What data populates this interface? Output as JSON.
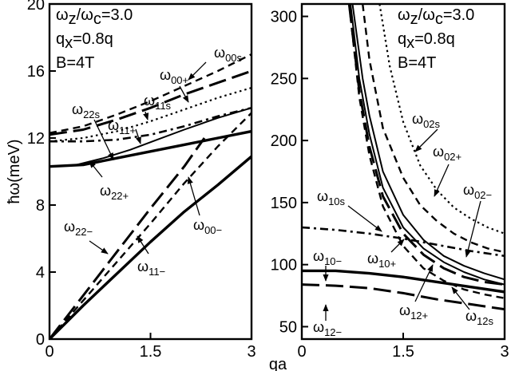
{
  "chart_data": [
    {
      "type": "line",
      "panel": "left",
      "ylabel": "ħω(meV)",
      "xlim": [
        0,
        3
      ],
      "ylim": [
        0,
        20
      ],
      "xticks": [
        "0",
        "1.5",
        "3"
      ],
      "yticks": [
        "0",
        "4",
        "8",
        "12",
        "16",
        "20"
      ],
      "annotations": [
        "ωz/ωc=3.0",
        "qx=0.8q",
        "B=4T"
      ],
      "series": [
        {
          "name": "ω00s",
          "style": "dash",
          "x": [
            0,
            0.5,
            1.0,
            1.5,
            2.0,
            2.5,
            3.0
          ],
          "y": [
            12.3,
            12.7,
            13.4,
            14.2,
            15.1,
            16.0,
            17.0
          ]
        },
        {
          "name": "ω00+",
          "style": "longdash",
          "x": [
            0,
            0.5,
            1.0,
            1.5,
            2.0,
            2.5,
            3.0
          ],
          "y": [
            12.2,
            12.5,
            13.1,
            13.8,
            14.6,
            15.3,
            16.0
          ]
        },
        {
          "name": "ω11s",
          "style": "dot",
          "x": [
            0,
            0.5,
            1.0,
            1.5,
            2.0,
            2.5,
            3.0
          ],
          "y": [
            11.8,
            12.0,
            12.4,
            13.0,
            13.7,
            14.4,
            15.0
          ]
        },
        {
          "name": "ω11+",
          "style": "dashdot",
          "x": [
            0,
            0.5,
            1.0,
            1.5,
            2.0,
            2.5,
            3.0
          ],
          "y": [
            11.8,
            11.8,
            11.9,
            12.2,
            12.7,
            13.3,
            13.8
          ]
        },
        {
          "name": "ω22s",
          "style": "solid",
          "x": [
            0,
            0.4,
            0.8,
            1.2,
            1.6,
            2.0,
            2.5,
            3.0
          ],
          "y": [
            10.3,
            10.4,
            10.8,
            11.3,
            11.9,
            12.5,
            13.2,
            13.8
          ]
        },
        {
          "name": "ω22+",
          "style": "solid-thick",
          "x": [
            0,
            0.5,
            1.0,
            1.5,
            2.0,
            2.5,
            3.0
          ],
          "y": [
            10.3,
            10.4,
            10.8,
            11.2,
            11.6,
            12.0,
            12.4
          ]
        },
        {
          "name": "ω22−",
          "style": "longdash",
          "x": [
            0,
            0.5,
            1.0,
            1.5,
            2.0,
            2.3
          ],
          "y": [
            0,
            2.6,
            5.2,
            7.8,
            10.3,
            12.0
          ]
        },
        {
          "name": "ω00−",
          "style": "dash",
          "x": [
            0,
            0.5,
            1.0,
            1.5,
            2.0,
            2.5,
            3.0
          ],
          "y": [
            0,
            2.3,
            4.6,
            6.9,
            9.3,
            11.5,
            13.5
          ]
        },
        {
          "name": "ω11−",
          "style": "solid-thick",
          "x": [
            0,
            0.5,
            1.0,
            1.5,
            2.0,
            2.5,
            3.0
          ],
          "y": [
            0,
            2.0,
            3.9,
            5.8,
            7.6,
            9.2,
            10.9
          ]
        }
      ]
    },
    {
      "type": "line",
      "panel": "right",
      "xlabel": "qa",
      "xlim": [
        0,
        3
      ],
      "ylim": [
        40,
        310
      ],
      "xticks": [
        "0",
        "1.5",
        "3"
      ],
      "yticks": [
        "50",
        "100",
        "150",
        "200",
        "250",
        "300"
      ],
      "annotations": [
        "ωz/ωc=3.0",
        "qx=0.8q",
        "B=4T"
      ],
      "series": [
        {
          "name": "ω02s",
          "style": "dot",
          "x": [
            1.15,
            1.3,
            1.5,
            1.75,
            2.0,
            2.25,
            2.5,
            2.75,
            3.0
          ],
          "y": [
            310,
            260,
            215,
            180,
            160,
            146,
            137,
            130,
            125
          ]
        },
        {
          "name": "ω02+",
          "style": "dash",
          "x": [
            0.9,
            1.0,
            1.2,
            1.5,
            1.75,
            2.0,
            2.25,
            2.5,
            2.75,
            3.0
          ],
          "y": [
            310,
            265,
            210,
            170,
            148,
            135,
            125,
            118,
            113,
            110
          ]
        },
        {
          "name": "ω02−",
          "style": "dashdot",
          "x": [
            0,
            0.5,
            1.0,
            1.5,
            2.0,
            2.5,
            3.0
          ],
          "y": [
            130,
            128,
            125,
            121,
            116,
            111,
            107
          ]
        },
        {
          "name": "ω10s",
          "style": "solid",
          "x": [
            0.75,
            0.9,
            1.0,
            1.2,
            1.5,
            1.8,
            2.1,
            2.4,
            2.7,
            3.0
          ],
          "y": [
            310,
            250,
            220,
            175,
            140,
            120,
            107,
            99,
            93,
            88
          ]
        },
        {
          "name": "ω10+",
          "style": "solid",
          "x": [
            0.72,
            0.85,
            1.0,
            1.2,
            1.5,
            1.8,
            2.1,
            2.4,
            2.7,
            3.0
          ],
          "y": [
            310,
            250,
            205,
            162,
            130,
            113,
            102,
            94,
            88,
            84
          ]
        },
        {
          "name": "ω12+",
          "style": "longdash",
          "x": [
            0.7,
            0.85,
            1.0,
            1.2,
            1.5,
            1.8,
            2.1,
            2.4,
            2.7,
            3.0
          ],
          "y": [
            310,
            240,
            195,
            155,
            125,
            108,
            97,
            90,
            86,
            84
          ]
        },
        {
          "name": "ω12s",
          "style": "dash",
          "x": [
            0.7,
            0.85,
            1.0,
            1.2,
            1.5,
            1.8,
            2.1,
            2.4,
            2.7,
            3.0
          ],
          "y": [
            310,
            235,
            188,
            147,
            115,
            97,
            87,
            80,
            76,
            73
          ]
        },
        {
          "name": "ω10−",
          "style": "solid-thick",
          "x": [
            0,
            0.5,
            1.0,
            1.5,
            2.0,
            2.5,
            3.0
          ],
          "y": [
            95,
            95,
            93,
            90,
            86,
            82,
            78
          ]
        },
        {
          "name": "ω12−",
          "style": "longdash",
          "x": [
            0,
            0.5,
            1.0,
            1.5,
            2.0,
            2.5,
            3.0
          ],
          "y": [
            84,
            83,
            81,
            77,
            72,
            68,
            64
          ]
        }
      ]
    }
  ]
}
